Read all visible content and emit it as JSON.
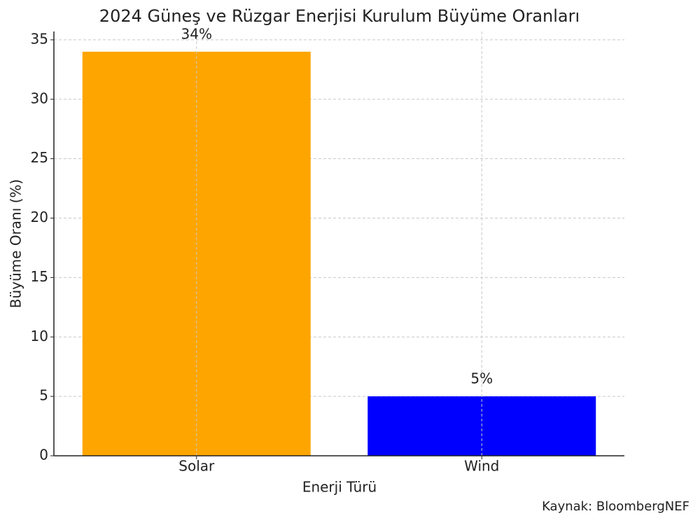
{
  "chart_data": {
    "type": "bar",
    "title": "2024 Güneş ve Rüzgar Enerjisi Kurulum Büyüme Oranları",
    "xlabel": "Enerji Türü",
    "ylabel": "Büyüme Oranı (%)",
    "categories": [
      "Solar",
      "Wind"
    ],
    "values": [
      34,
      5
    ],
    "value_labels": [
      "34%",
      "5%"
    ],
    "colors": [
      "#ffa500",
      "#0000ff"
    ],
    "ylim": [
      0,
      35.7
    ],
    "yticks": [
      0,
      5,
      10,
      15,
      20,
      25,
      30,
      35
    ],
    "grid": true,
    "source": "Kaynak: BloombergNEF"
  }
}
